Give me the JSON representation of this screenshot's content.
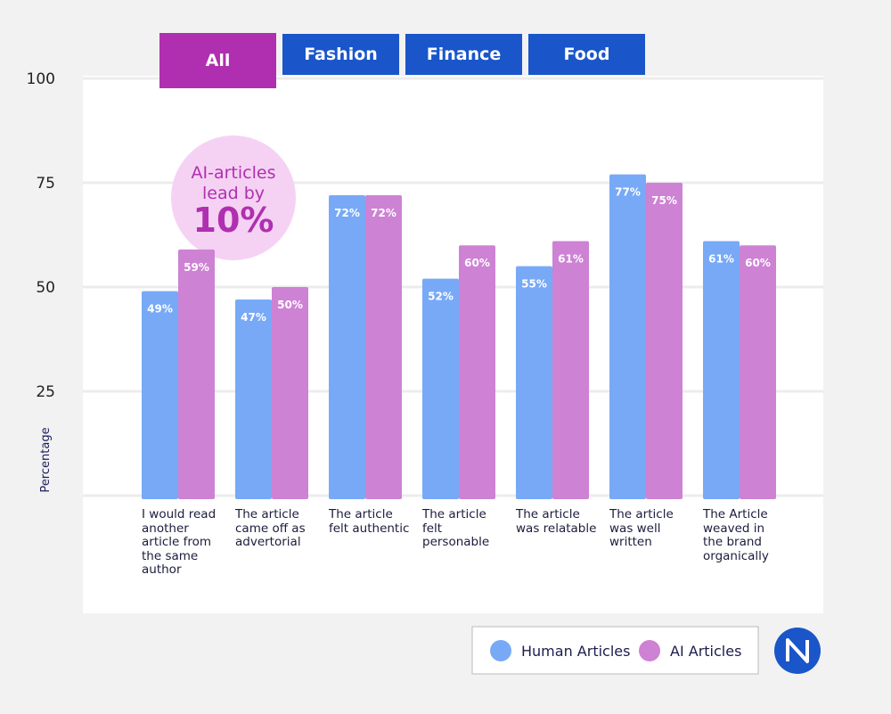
{
  "tabs": [
    "All",
    "Fashion",
    "Finance",
    "Food"
  ],
  "chart_data": {
    "type": "bar",
    "y_label": "Percentage",
    "categories": [
      "I would read another article from the same author",
      "The article came off as advertorial",
      "The article felt authentic",
      "The article felt personable",
      "The article was relatable",
      "The article was well written",
      "The Article weaved in the brand organically"
    ],
    "series": [
      {
        "name": "Human Articles",
        "color": "#78a9f7",
        "values": [
          49,
          47,
          72,
          52,
          55,
          77,
          61
        ],
        "value_labels": [
          "49%",
          "47%",
          "72%",
          "52%",
          "55%",
          "77%",
          "61%"
        ]
      },
      {
        "name": "AI Articles",
        "color": "#cd82d4",
        "values": [
          59,
          50,
          72,
          60,
          61,
          75,
          60
        ],
        "value_labels": [
          "59%",
          "50%",
          "72%",
          "60%",
          "61%",
          "75%",
          "60%"
        ]
      }
    ],
    "ylim": [
      0,
      100
    ],
    "yticks": [
      25,
      50,
      75,
      100
    ],
    "grid": true,
    "annotation": {
      "text": "AI-articles lead by",
      "highlight": "10%"
    }
  }
}
